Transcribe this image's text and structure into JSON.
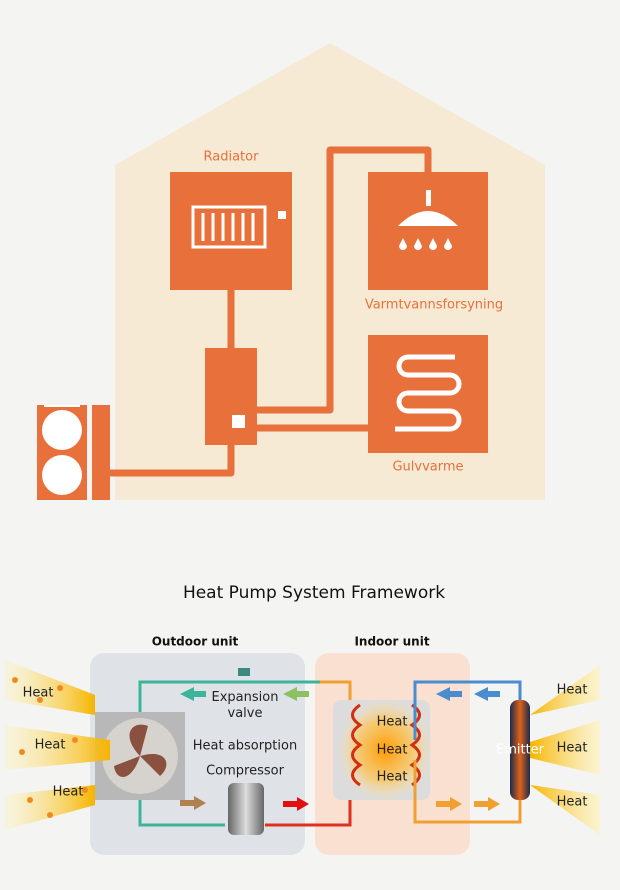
{
  "house": {
    "radiator": "Radiator",
    "hot_water": "Varmtvannsforsyning",
    "floor_heating": "Gulvvarme"
  },
  "framework": {
    "title": "Heat Pump System Framework",
    "outdoor_unit": {
      "label": "Outdoor unit",
      "heat_in": [
        "Heat",
        "Heat",
        "Heat"
      ],
      "expansion_valve": [
        "Expansion",
        "valve"
      ],
      "heat_absorption": "Heat absorption",
      "compressor": "Compressor"
    },
    "indoor_unit": {
      "label": "Indoor unit",
      "coil_heat": [
        "Heat",
        "Heat",
        "Heat"
      ],
      "emitter": "Emitter",
      "heat_out": [
        "Heat",
        "Heat",
        "Heat"
      ]
    }
  }
}
